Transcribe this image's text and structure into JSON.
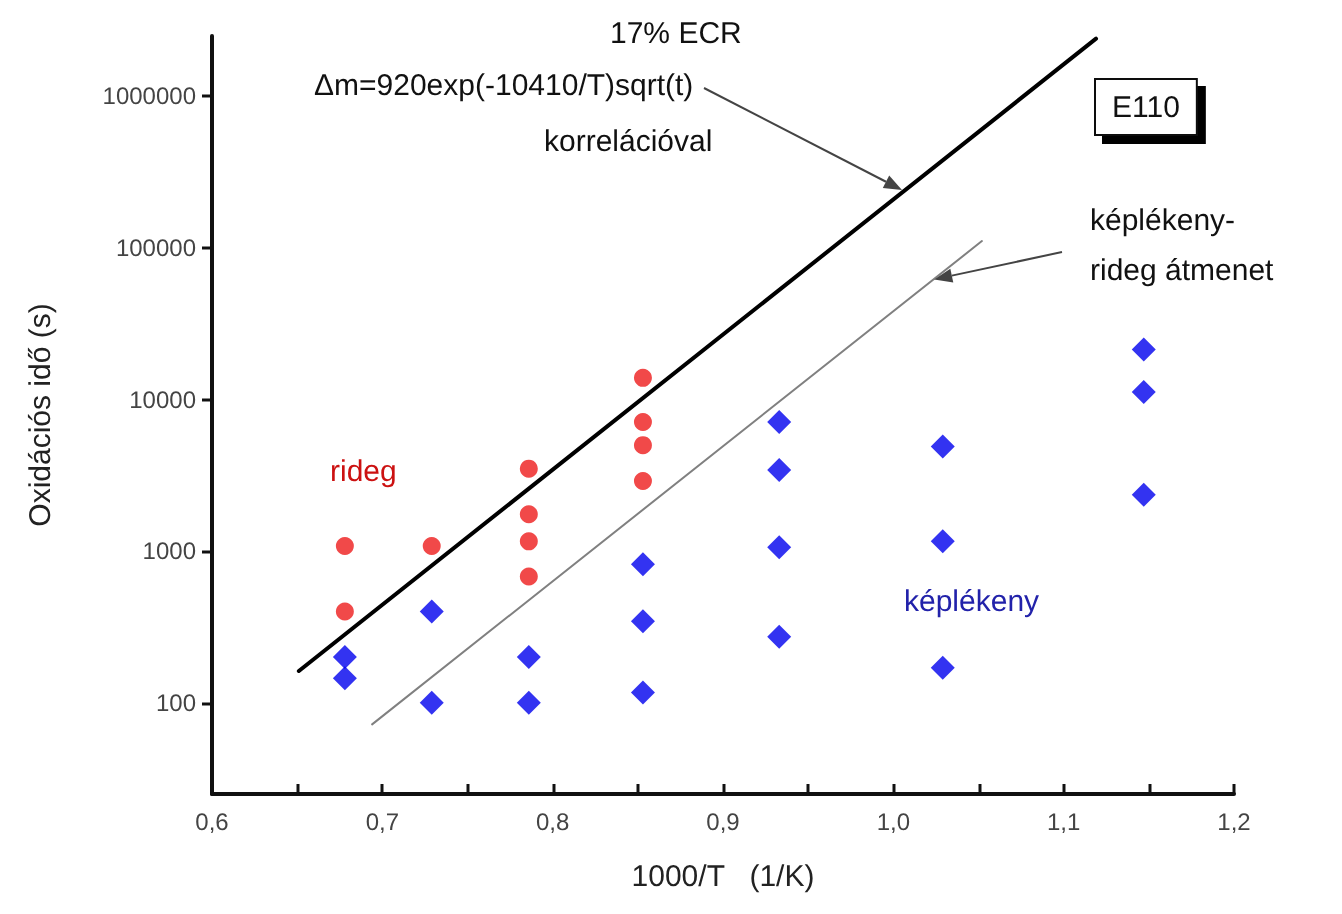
{
  "chart_data": {
    "type": "scatter",
    "xlabel": "1000/T   (1/K)",
    "ylabel": "Oxidációs idő (s)",
    "log": "y",
    "grid": false,
    "xlim": [
      0.6,
      1.2
    ],
    "xticks": [
      {
        "value": 0.6,
        "label": "0,6"
      },
      {
        "value": 0.65,
        "label": null
      },
      {
        "value": 0.7,
        "label": "0,7"
      },
      {
        "value": 0.75,
        "label": null
      },
      {
        "value": 0.8,
        "label": "0,8"
      },
      {
        "value": 0.85,
        "label": null
      },
      {
        "value": 0.9,
        "label": "0,9"
      },
      {
        "value": 0.95,
        "label": null
      },
      {
        "value": 1.0,
        "label": "1,0"
      },
      {
        "value": 1.05,
        "label": null
      },
      {
        "value": 1.1,
        "label": "1,1"
      },
      {
        "value": 1.15,
        "label": null
      },
      {
        "value": 1.2,
        "label": "1,2"
      }
    ],
    "ylim": [
      25,
      2500000
    ],
    "yticks": [
      100,
      1000,
      10000,
      100000,
      1000000
    ],
    "annotations": [
      "17% ECR",
      "Δm=920exp(-10410/T)sqrt(t)",
      "korrelációval",
      {
        "text": "képlékeny-\nrideg átmenet",
        "x": 1.024,
        "y": 62000
      },
      "rideg",
      "képlékeny",
      "E110"
    ],
    "series": [
      {
        "marker": "circle",
        "color": "#ee1c1c",
        "x": [
          0.678,
          0.678,
          0.729,
          0.786,
          0.786,
          0.786,
          0.786,
          0.853,
          0.853,
          0.853,
          0.853
        ],
        "values": [
          1080,
          400,
          1080,
          3500,
          1750,
          1160,
          680,
          13900,
          7100,
          5000,
          2900
        ]
      },
      {
        "marker": "diamond",
        "color": "#0000ee",
        "x": [
          0.678,
          0.678,
          0.729,
          0.729,
          0.786,
          0.786,
          0.853,
          0.853,
          0.853,
          0.933,
          0.933,
          0.933,
          0.933,
          1.029,
          1.029,
          1.029,
          1.147,
          1.147,
          1.147
        ],
        "values": [
          200,
          145,
          400,
          100,
          200,
          100,
          820,
          345,
          117,
          7100,
          3430,
          1060,
          272,
          4900,
          1160,
          170,
          21400,
          11200,
          2350
        ]
      },
      {
        "type": "line",
        "marker": "none",
        "line_style": "solid",
        "color": "#000000",
        "x": [
          0.651,
          1.119
        ],
        "values": [
          162,
          2400000
        ]
      },
      {
        "type": "line",
        "marker": "none",
        "line_style": "solid",
        "color": "#808080",
        "x": [
          0.694,
          1.052
        ],
        "values": [
          72,
          111000
        ]
      }
    ]
  }
}
